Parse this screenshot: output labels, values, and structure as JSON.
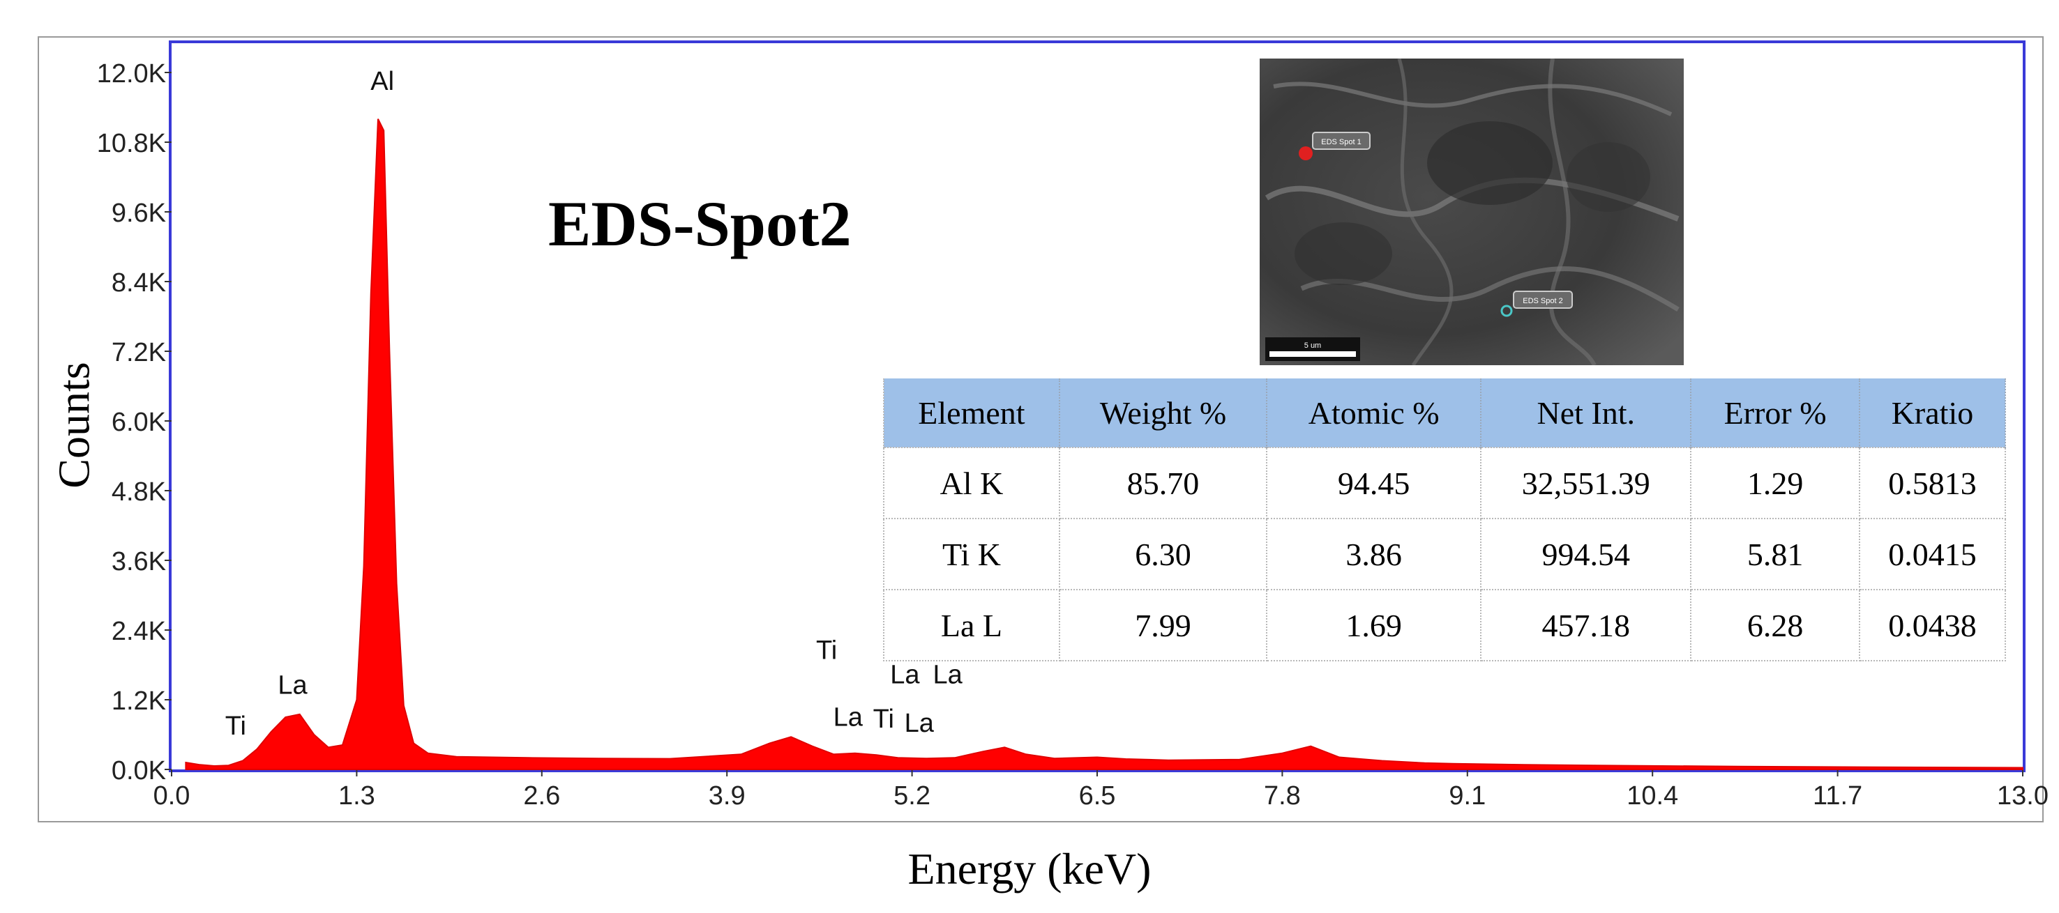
{
  "chart_data": {
    "type": "area",
    "title": "EDS-Spot2",
    "xlabel": "Energy (keV)",
    "ylabel": "Counts",
    "xlim": [
      0.0,
      13.0
    ],
    "ylim": [
      0,
      12000
    ],
    "x_ticks": [
      "0.0",
      "1.3",
      "2.6",
      "3.9",
      "5.2",
      "6.5",
      "7.8",
      "9.1",
      "10.4",
      "11.7",
      "13.0"
    ],
    "y_ticks": [
      "0.0K",
      "1.2K",
      "2.4K",
      "3.6K",
      "4.8K",
      "6.0K",
      "7.2K",
      "8.4K",
      "9.6K",
      "10.8K",
      "12.0K"
    ],
    "series": [
      {
        "color": "#ff0000",
        "x": [
          0.1,
          0.2,
          0.3,
          0.4,
          0.5,
          0.6,
          0.7,
          0.8,
          0.9,
          1.0,
          1.1,
          1.2,
          1.3,
          1.35,
          1.4,
          1.45,
          1.49,
          1.53,
          1.58,
          1.63,
          1.7,
          1.8,
          2.0,
          2.5,
          3.0,
          3.5,
          4.0,
          4.2,
          4.35,
          4.5,
          4.65,
          4.8,
          4.95,
          5.1,
          5.3,
          5.5,
          5.7,
          5.85,
          6.0,
          6.2,
          6.5,
          6.7,
          7.0,
          7.5,
          7.8,
          8.0,
          8.2,
          8.5,
          8.8,
          9.0,
          9.5,
          10.0,
          11.0,
          12.0,
          13.0
        ],
        "y": [
          120,
          80,
          60,
          70,
          150,
          350,
          650,
          900,
          950,
          600,
          380,
          420,
          1200,
          3500,
          8200,
          11200,
          11000,
          7200,
          3200,
          1100,
          450,
          280,
          220,
          200,
          190,
          185,
          260,
          450,
          560,
          400,
          260,
          280,
          250,
          200,
          190,
          200,
          310,
          380,
          260,
          190,
          210,
          180,
          160,
          170,
          280,
          400,
          210,
          150,
          110,
          100,
          80,
          70,
          50,
          40,
          30
        ]
      }
    ],
    "peak_labels": [
      {
        "text": "Al",
        "x": 1.48,
        "y": 11700
      },
      {
        "text": "La",
        "x": 0.85,
        "y": 1300
      },
      {
        "text": "Ti",
        "x": 0.45,
        "y": 600
      },
      {
        "text": "Ti",
        "x": 4.6,
        "y": 1900
      },
      {
        "text": "La",
        "x": 4.75,
        "y": 750
      },
      {
        "text": "Ti",
        "x": 5.0,
        "y": 720
      },
      {
        "text": "La",
        "x": 5.15,
        "y": 1480
      },
      {
        "text": "La",
        "x": 5.45,
        "y": 1480
      },
      {
        "text": "La",
        "x": 5.25,
        "y": 650
      }
    ]
  },
  "sem_image": {
    "spot1_label": "EDS Spot 1",
    "spot2_label": "EDS Spot 2",
    "scale_label": "5 um"
  },
  "table": {
    "headers": [
      "Element",
      "Weight %",
      "Atomic %",
      "Net Int.",
      "Error %",
      "Kratio"
    ],
    "rows": [
      [
        "Al K",
        "85.70",
        "94.45",
        "32,551.39",
        "1.29",
        "0.5813"
      ],
      [
        "Ti K",
        "6.30",
        "3.86",
        "994.54",
        "5.81",
        "0.0415"
      ],
      [
        "La L",
        "7.99",
        "1.69",
        "457.18",
        "6.28",
        "0.0438"
      ]
    ]
  }
}
